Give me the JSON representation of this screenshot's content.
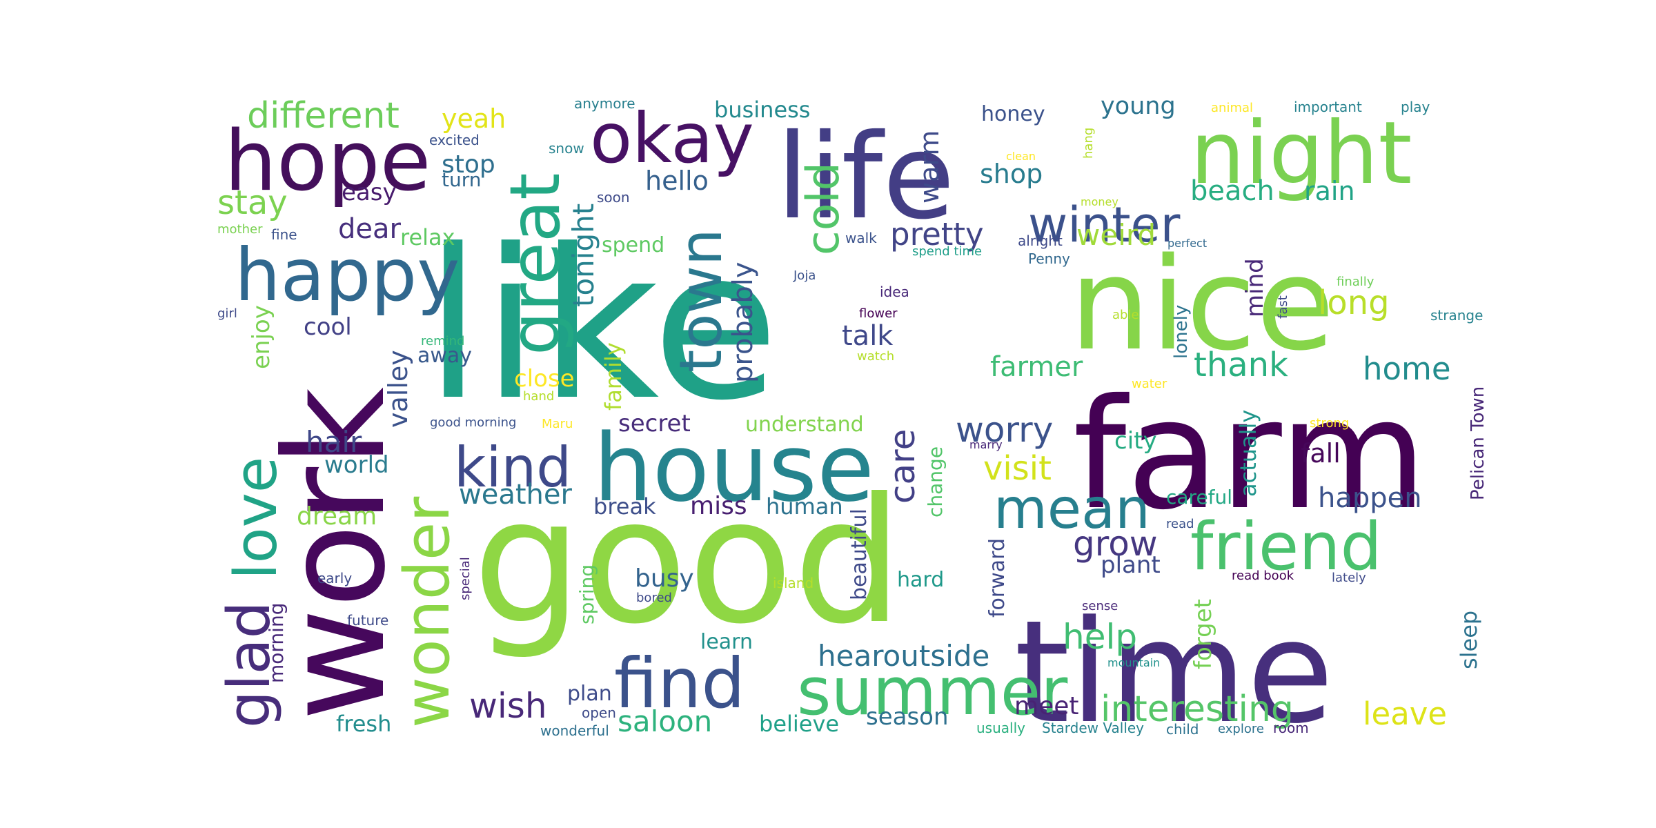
{
  "palette": {
    "viridis": [
      "#440154",
      "#482878",
      "#3e4a89",
      "#31688e",
      "#26828e",
      "#1f9e89",
      "#35b779",
      "#6ece58",
      "#b5de2b",
      "#fde725"
    ]
  },
  "words": [
    {
      "text": "like",
      "color": "#1fa187"
    },
    {
      "text": "good",
      "color": "#8fd744"
    },
    {
      "text": "time",
      "color": "#472f7d"
    },
    {
      "text": "farm",
      "color": "#440154"
    },
    {
      "text": "work",
      "color": "#46085c"
    },
    {
      "text": "nice",
      "color": "#86d549"
    },
    {
      "text": "life",
      "color": "#433e85"
    },
    {
      "text": "house",
      "color": "#25848e"
    },
    {
      "text": "night",
      "color": "#7ad151"
    },
    {
      "text": "hope",
      "color": "#440f5b"
    },
    {
      "text": "happy",
      "color": "#31688e"
    },
    {
      "text": "okay",
      "color": "#471164"
    },
    {
      "text": "great",
      "color": "#22a884"
    },
    {
      "text": "find",
      "color": "#3b528b"
    },
    {
      "text": "summer",
      "color": "#44bf70"
    },
    {
      "text": "friend",
      "color": "#4ac16d"
    },
    {
      "text": "wonder",
      "color": "#8bd646"
    },
    {
      "text": "love",
      "color": "#20a386"
    },
    {
      "text": "glad",
      "color": "#472d7b"
    },
    {
      "text": "town",
      "color": "#2a788e"
    },
    {
      "text": "kind",
      "color": "#3e4989"
    },
    {
      "text": "mean",
      "color": "#277f8e"
    },
    {
      "text": "winter",
      "color": "#3b518b"
    },
    {
      "text": "different",
      "color": "#6ccd5a"
    },
    {
      "text": "cold",
      "color": "#52c569"
    },
    {
      "text": "interesting",
      "color": "#54c568"
    },
    {
      "text": "hearoutside",
      "color": "#2d708e"
    },
    {
      "text": "worry",
      "color": "#3b528b"
    },
    {
      "text": "pretty",
      "color": "#414487"
    },
    {
      "text": "wish",
      "color": "#482878"
    },
    {
      "text": "help",
      "color": "#40bd72"
    },
    {
      "text": "grow",
      "color": "#453781"
    },
    {
      "text": "weird",
      "color": "#a0da39"
    },
    {
      "text": "long",
      "color": "#b8de29"
    },
    {
      "text": "stay",
      "color": "#7cd250"
    },
    {
      "text": "tonight",
      "color": "#26818e"
    },
    {
      "text": "probably",
      "color": "#3a548c"
    },
    {
      "text": "visit",
      "color": "#d2e21b"
    },
    {
      "text": "thank",
      "color": "#2ab07f"
    },
    {
      "text": "home",
      "color": "#228c8d"
    },
    {
      "text": "farmer",
      "color": "#3dbc74"
    },
    {
      "text": "saloon",
      "color": "#2db27d"
    },
    {
      "text": "leave",
      "color": "#dde318"
    },
    {
      "text": "care",
      "color": "#424086"
    },
    {
      "text": "beach",
      "color": "#27ad81"
    },
    {
      "text": "yeah",
      "color": "#e2e418"
    },
    {
      "text": "business",
      "color": "#23898e"
    },
    {
      "text": "young",
      "color": "#2c738e"
    },
    {
      "text": "hello",
      "color": "#35608d"
    },
    {
      "text": "stop",
      "color": "#2e6f8e"
    },
    {
      "text": "rain",
      "color": "#20a386"
    },
    {
      "text": "shop",
      "color": "#287c8e"
    },
    {
      "text": "warm",
      "color": "#3e4a89"
    },
    {
      "text": "dear",
      "color": "#472f7d"
    },
    {
      "text": "easy",
      "color": "#481b6d"
    },
    {
      "text": "hair",
      "color": "#3f4788"
    },
    {
      "text": "world",
      "color": "#297b8e"
    },
    {
      "text": "weather",
      "color": "#2a788e"
    },
    {
      "text": "talk",
      "color": "#3f4889"
    },
    {
      "text": "secret",
      "color": "#472c7a"
    },
    {
      "text": "understand",
      "color": "#81d34d"
    },
    {
      "text": "valley",
      "color": "#3b528b"
    },
    {
      "text": "close",
      "color": "#fde725"
    },
    {
      "text": "enjoy",
      "color": "#7ad151"
    },
    {
      "text": "dream",
      "color": "#89d548"
    },
    {
      "text": "miss",
      "color": "#481f70"
    },
    {
      "text": "break",
      "color": "#3d4e8a"
    },
    {
      "text": "human",
      "color": "#2c728e"
    },
    {
      "text": "busy",
      "color": "#33638d"
    },
    {
      "text": "beautiful",
      "color": "#3e4989"
    },
    {
      "text": "change",
      "color": "#52c569"
    },
    {
      "text": "city",
      "color": "#25ab82"
    },
    {
      "text": "fall",
      "color": "#46075a"
    },
    {
      "text": "happen",
      "color": "#3b528b"
    },
    {
      "text": "careful",
      "color": "#22a884"
    },
    {
      "text": "actually",
      "color": "#1f958b"
    },
    {
      "text": "mind",
      "color": "#482878"
    },
    {
      "text": "lonely",
      "color": "#2c738e"
    },
    {
      "text": "family",
      "color": "#b0dd2f"
    },
    {
      "text": "away",
      "color": "#38598c"
    },
    {
      "text": "relax",
      "color": "#5ec962"
    },
    {
      "text": "cool",
      "color": "#424186"
    },
    {
      "text": "plant",
      "color": "#3e4a89"
    },
    {
      "text": "forget",
      "color": "#75d054"
    },
    {
      "text": "sleep",
      "color": "#2c728e"
    },
    {
      "text": "forward",
      "color": "#3e4989"
    },
    {
      "text": "hard",
      "color": "#1f998a"
    },
    {
      "text": "learn",
      "color": "#21918c"
    },
    {
      "text": "meet",
      "color": "#482374"
    },
    {
      "text": "season",
      "color": "#2d708e"
    },
    {
      "text": "believe",
      "color": "#1fa088"
    },
    {
      "text": "plan",
      "color": "#3e4c8a"
    },
    {
      "text": "fresh",
      "color": "#228d8d"
    },
    {
      "text": "morning",
      "color": "#482979"
    },
    {
      "text": "spring",
      "color": "#5ec962"
    },
    {
      "text": "spend",
      "color": "#5ec962"
    },
    {
      "text": "turn",
      "color": "#31678e"
    },
    {
      "text": "honey",
      "color": "#3b528b"
    },
    {
      "text": "Pelican Town",
      "color": "#482878"
    },
    {
      "text": "usually",
      "color": "#2ab07f"
    },
    {
      "text": "Stardew Valley",
      "color": "#26828e"
    },
    {
      "text": "child",
      "color": "#2c728e"
    },
    {
      "text": "explore",
      "color": "#2c728e"
    },
    {
      "text": "room",
      "color": "#482878"
    },
    {
      "text": "open",
      "color": "#3e4a89"
    },
    {
      "text": "wonderful",
      "color": "#2d708e"
    },
    {
      "text": "anymore",
      "color": "#277f8e"
    },
    {
      "text": "excited",
      "color": "#3b528b"
    },
    {
      "text": "snow",
      "color": "#26828e"
    },
    {
      "text": "soon",
      "color": "#3e4a89"
    },
    {
      "text": "fine",
      "color": "#3b528b"
    },
    {
      "text": "mother",
      "color": "#7ad151"
    },
    {
      "text": "girl",
      "color": "#3e4a89"
    },
    {
      "text": "remind",
      "color": "#35b779"
    },
    {
      "text": "hand",
      "color": "#b5de2b"
    },
    {
      "text": "good morning",
      "color": "#3b528b"
    },
    {
      "text": "Maru",
      "color": "#fde725"
    },
    {
      "text": "early",
      "color": "#3e4a89"
    },
    {
      "text": "future",
      "color": "#3e4a89"
    },
    {
      "text": "special",
      "color": "#482878"
    },
    {
      "text": "island",
      "color": "#b5de2b"
    },
    {
      "text": "bored",
      "color": "#3e4a89"
    },
    {
      "text": "Joja",
      "color": "#3b528b"
    },
    {
      "text": "walk",
      "color": "#3b528b"
    },
    {
      "text": "idea",
      "color": "#482878"
    },
    {
      "text": "flower",
      "color": "#440154"
    },
    {
      "text": "watch",
      "color": "#b5de2b"
    },
    {
      "text": "spend time",
      "color": "#1f9e89"
    },
    {
      "text": "alright",
      "color": "#3e4a89"
    },
    {
      "text": "Penny",
      "color": "#31688e"
    },
    {
      "text": "clean",
      "color": "#fde725"
    },
    {
      "text": "hang",
      "color": "#b5de2b"
    },
    {
      "text": "money",
      "color": "#b5de2b"
    },
    {
      "text": "perfect",
      "color": "#31688e"
    },
    {
      "text": "animal",
      "color": "#fde725"
    },
    {
      "text": "important",
      "color": "#26828e"
    },
    {
      "text": "play",
      "color": "#26828e"
    },
    {
      "text": "finally",
      "color": "#6ece58"
    },
    {
      "text": "fast",
      "color": "#3e4a89"
    },
    {
      "text": "able",
      "color": "#b5de2b"
    },
    {
      "text": "strange",
      "color": "#26828e"
    },
    {
      "text": "water",
      "color": "#fde725"
    },
    {
      "text": "strong",
      "color": "#fde725"
    },
    {
      "text": "marry",
      "color": "#482878"
    },
    {
      "text": "read",
      "color": "#3b528b"
    },
    {
      "text": "read book",
      "color": "#440154"
    },
    {
      "text": "lately",
      "color": "#3e4a89"
    },
    {
      "text": "sense",
      "color": "#482878"
    },
    {
      "text": "mountain",
      "color": "#21918c"
    }
  ]
}
